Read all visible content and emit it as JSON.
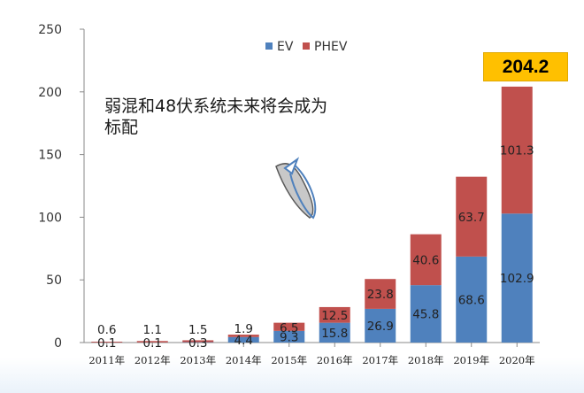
{
  "chart_data": {
    "type": "bar",
    "stacked": true,
    "categories": [
      "2011年",
      "2012年",
      "2013年",
      "2014年",
      "2015年",
      "2016年",
      "2017年",
      "2018年",
      "2019年",
      "2020年"
    ],
    "series": [
      {
        "name": "EV",
        "color": "#4f81bd",
        "values": [
          0.1,
          0.1,
          0.3,
          4.4,
          9.3,
          15.8,
          26.9,
          45.8,
          68.6,
          102.9
        ]
      },
      {
        "name": "PHEV",
        "color": "#c0504d",
        "values": [
          0.6,
          1.1,
          1.5,
          1.9,
          6.5,
          12.5,
          23.8,
          40.6,
          63.7,
          101.3
        ]
      }
    ],
    "ylim": [
      0,
      250
    ],
    "yticks": [
      0,
      50,
      100,
      150,
      200,
      250
    ],
    "legend_position": "top-center",
    "total_callout": "204.2",
    "annotation": "弱混和48伏系统未来将会成为标配"
  }
}
